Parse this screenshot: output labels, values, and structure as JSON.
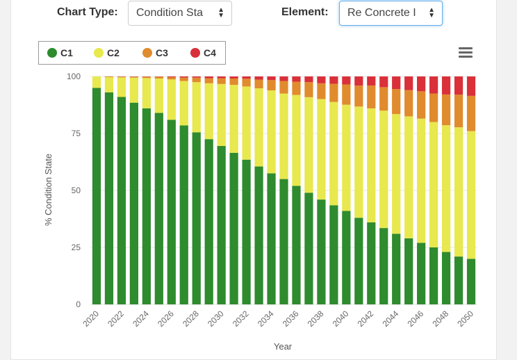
{
  "controls": {
    "chart_type_label": "Chart Type:",
    "chart_type_value": "Condition Sta",
    "element_label": "Element:",
    "element_value": "Re Concrete I"
  },
  "colors": {
    "C1": "#2e8b2e",
    "C2": "#e8e84f",
    "C3": "#e08b2d",
    "C4": "#d9303a"
  },
  "chart_data": {
    "type": "bar",
    "stacked": true,
    "ylabel": "% Condition State",
    "xlabel": "Year",
    "ylim": [
      0,
      100
    ],
    "yticks": [
      0,
      25,
      50,
      75,
      100
    ],
    "xticks": [
      "2020",
      "2022",
      "2024",
      "2026",
      "2028",
      "2030",
      "2032",
      "2034",
      "2036",
      "2038",
      "2040",
      "2042",
      "2044",
      "2046",
      "2048",
      "2050"
    ],
    "legend_position": "top-left",
    "grid": true,
    "categories": [
      "2020",
      "2021",
      "2022",
      "2023",
      "2024",
      "2025",
      "2026",
      "2027",
      "2028",
      "2029",
      "2030",
      "2031",
      "2032",
      "2033",
      "2034",
      "2035",
      "2036",
      "2037",
      "2038",
      "2039",
      "2040",
      "2041",
      "2042",
      "2043",
      "2044",
      "2045",
      "2046",
      "2047",
      "2048",
      "2049",
      "2050"
    ],
    "series": [
      {
        "name": "C1",
        "values": [
          95,
          93,
          91,
          88.5,
          86,
          84,
          81,
          78.5,
          75.5,
          72.5,
          69.5,
          66.5,
          63.5,
          60.5,
          57.5,
          55,
          52,
          49,
          46,
          43.5,
          41,
          38,
          36,
          33.5,
          31,
          29,
          27,
          25,
          23,
          21,
          20
        ]
      },
      {
        "name": "C2",
        "values": [
          5,
          6.7,
          8.6,
          11,
          13.3,
          15.1,
          17.7,
          19.5,
          22,
          24.5,
          27.2,
          29.8,
          32.1,
          34.3,
          36.4,
          37.5,
          39.9,
          41.9,
          44.1,
          45.3,
          46.6,
          48.8,
          50,
          51.5,
          52.5,
          53.5,
          54.5,
          55,
          55.6,
          56.7,
          56
        ]
      },
      {
        "name": "C3",
        "values": [
          0,
          0.3,
          0.3,
          0.4,
          0.6,
          0.8,
          1,
          1.5,
          2,
          2.2,
          2.5,
          2.8,
          3.4,
          3.8,
          4.5,
          5.5,
          5.8,
          6.6,
          6.9,
          8,
          8.9,
          9.2,
          10,
          10.3,
          11,
          11.5,
          12,
          12.5,
          13.5,
          14.3,
          15.5
        ]
      },
      {
        "name": "C4",
        "values": [
          0,
          0,
          0.1,
          0.1,
          0.1,
          0.1,
          0.3,
          0.5,
          0.5,
          0.8,
          0.8,
          0.9,
          1,
          1.4,
          1.6,
          2,
          2.3,
          2.5,
          3,
          3.2,
          3.5,
          4,
          4,
          4.7,
          5.5,
          6,
          6.5,
          7.5,
          7.9,
          8,
          8.5
        ]
      }
    ]
  }
}
